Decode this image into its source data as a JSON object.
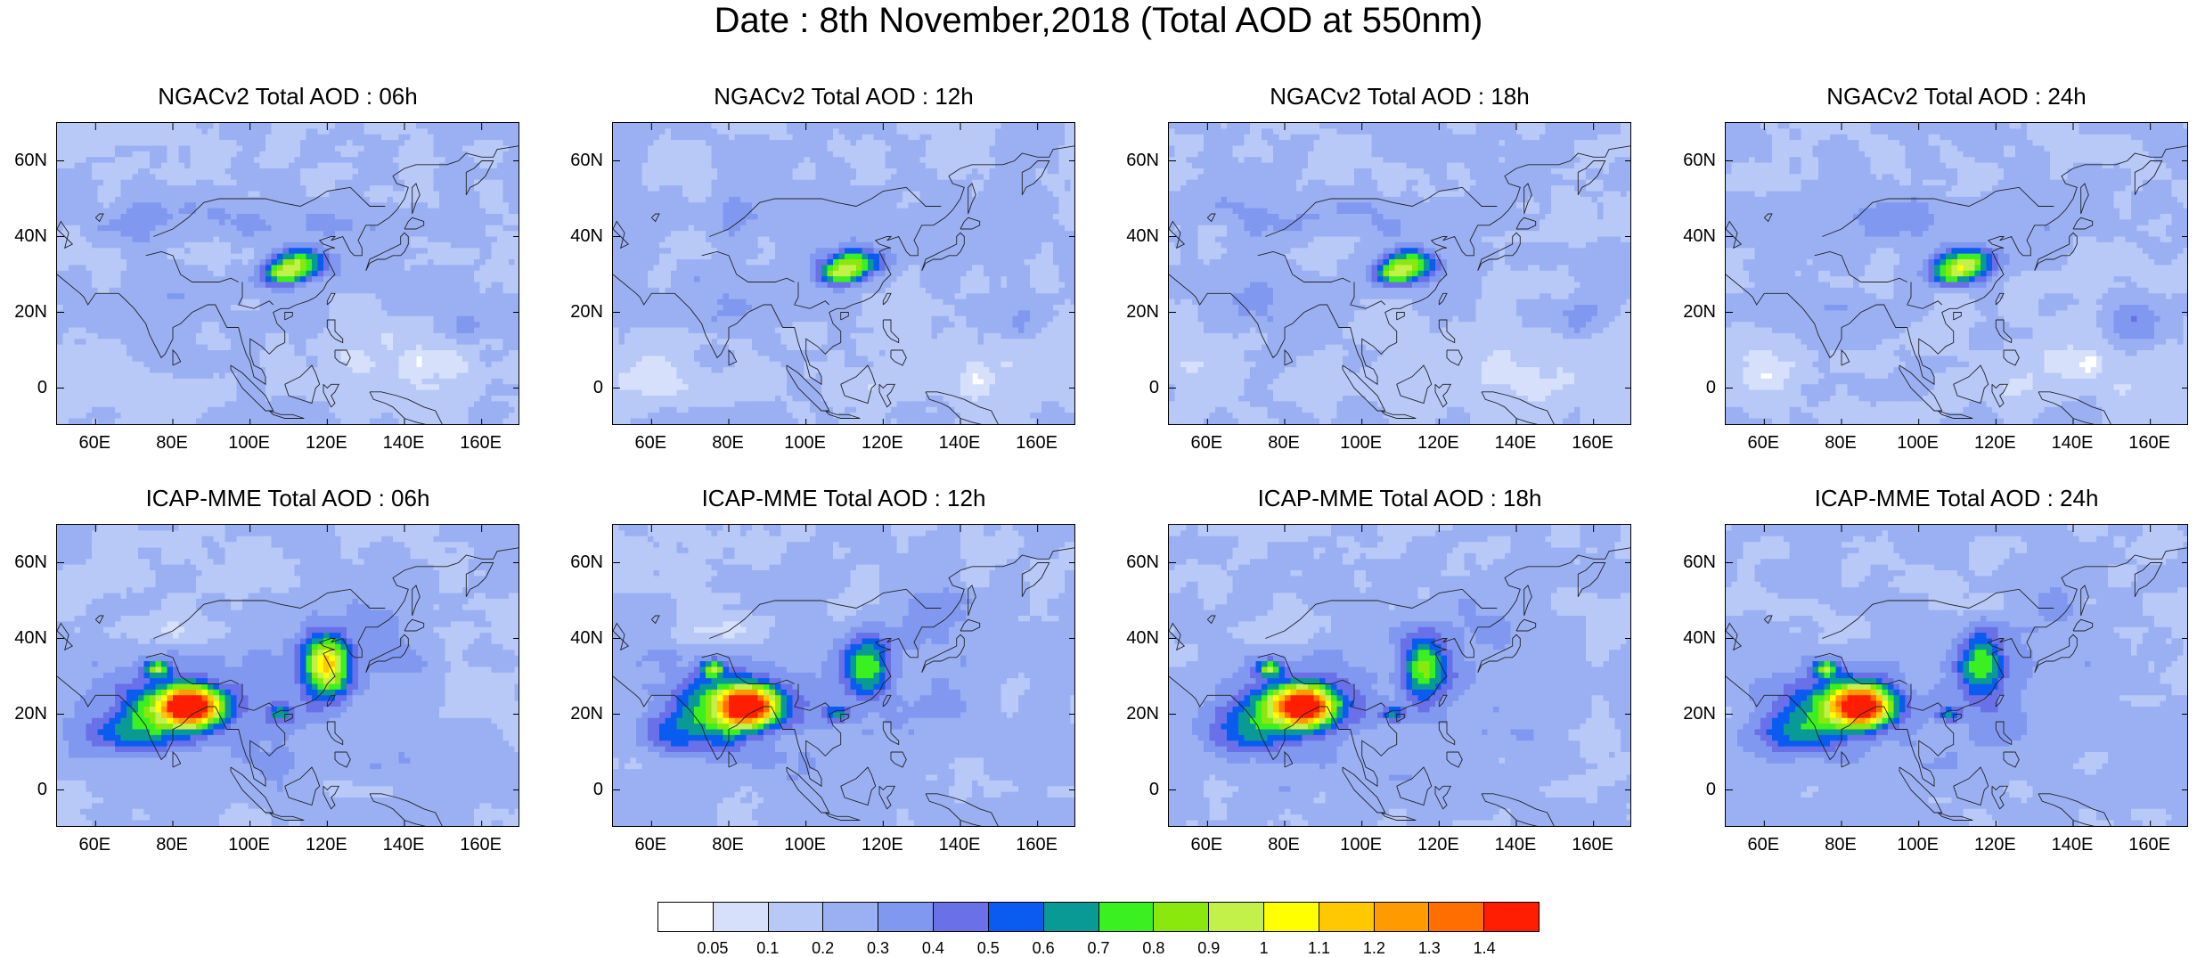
{
  "title": "Date : 8th November,2018 (Total AOD at 550nm)",
  "panels": [
    {
      "title": "NGACv2 Total AOD : 06h",
      "model": "NGACv2",
      "lead": "06h"
    },
    {
      "title": "NGACv2 Total AOD : 12h",
      "model": "NGACv2",
      "lead": "12h"
    },
    {
      "title": "NGACv2 Total AOD : 18h",
      "model": "NGACv2",
      "lead": "18h"
    },
    {
      "title": "NGACv2 Total AOD : 24h",
      "model": "NGACv2",
      "lead": "24h"
    },
    {
      "title": "ICAP-MME Total AOD : 06h",
      "model": "ICAP-MME",
      "lead": "06h"
    },
    {
      "title": "ICAP-MME Total AOD : 12h",
      "model": "ICAP-MME",
      "lead": "12h"
    },
    {
      "title": "ICAP-MME Total AOD : 18h",
      "model": "ICAP-MME",
      "lead": "18h"
    },
    {
      "title": "ICAP-MME Total AOD : 24h",
      "model": "ICAP-MME",
      "lead": "24h"
    }
  ],
  "axes": {
    "lat_labels": [
      "60N",
      "40N",
      "20N",
      "0"
    ],
    "lon_labels": [
      "60E",
      "80E",
      "100E",
      "120E",
      "140E",
      "160E"
    ],
    "lat_range": [
      -10,
      70
    ],
    "lon_range": [
      50,
      170
    ]
  },
  "colorbar": {
    "labels": [
      "0.05",
      "0.1",
      "0.2",
      "0.3",
      "0.4",
      "0.5",
      "0.6",
      "0.7",
      "0.8",
      "0.9",
      "1",
      "1.1",
      "1.2",
      "1.3",
      "1.4"
    ],
    "colors": [
      "#ffffff",
      "#d6e0fb",
      "#b8c8f7",
      "#9bb0f3",
      "#8098ef",
      "#6a70e8",
      "#0a5cf0",
      "#0a9a96",
      "#3af020",
      "#8ae80e",
      "#c4f04a",
      "#ffff00",
      "#ffc800",
      "#ff9b00",
      "#ff6e00",
      "#ff1e00"
    ]
  }
}
